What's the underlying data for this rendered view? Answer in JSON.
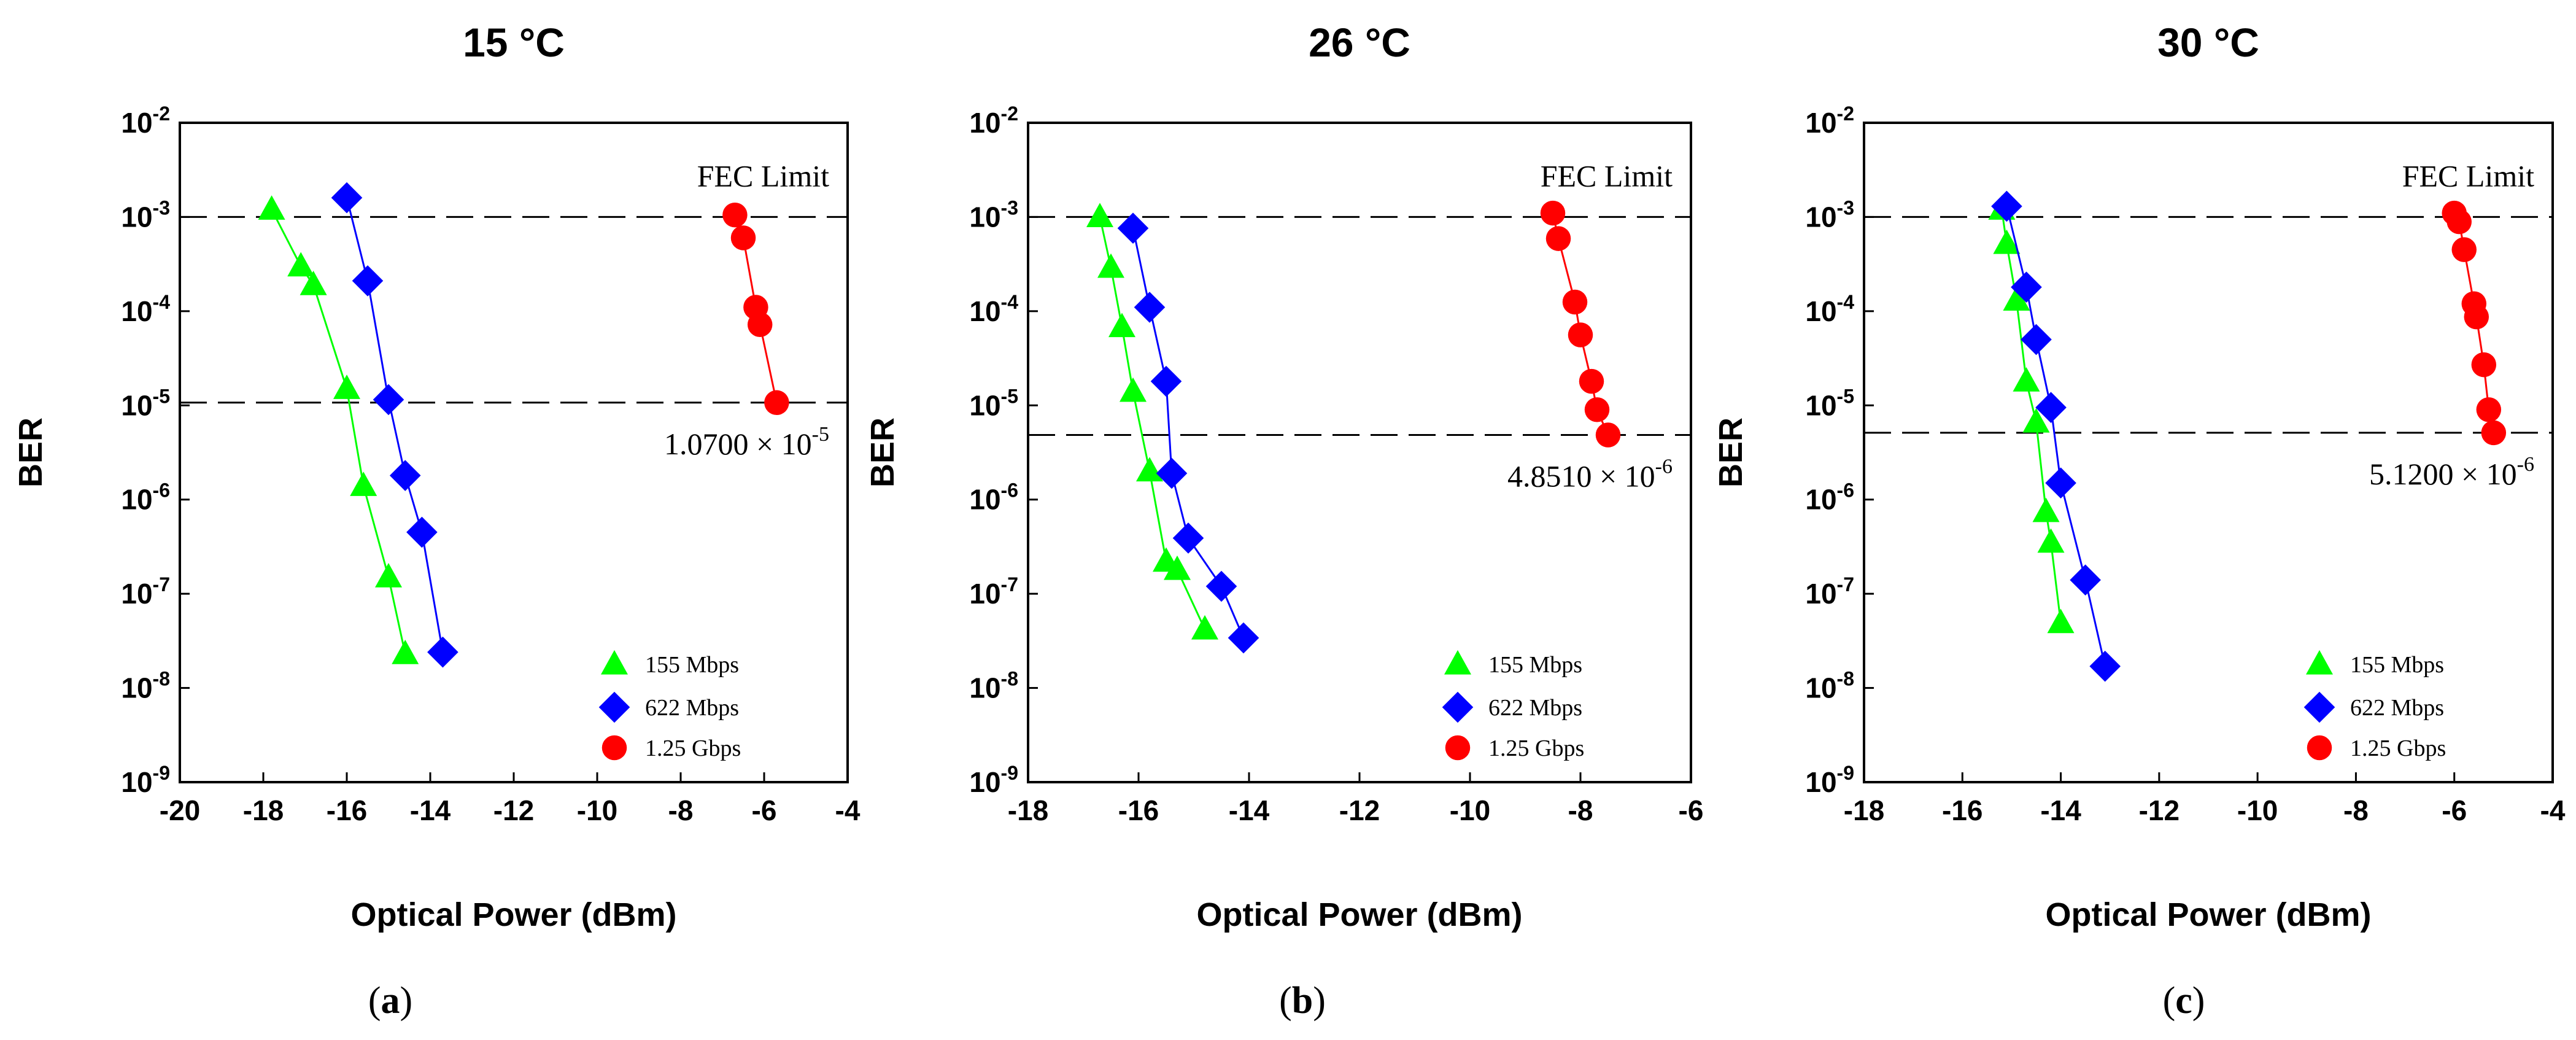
{
  "figure": {
    "captions": [
      "a",
      "b",
      "c"
    ]
  },
  "chart_data": [
    {
      "type": "line",
      "title": "15 °C",
      "xlabel": "Optical Power (dBm)",
      "ylabel": "BER",
      "xlim": [
        -20,
        -4
      ],
      "xticks": [
        -20,
        -18,
        -16,
        -14,
        -12,
        -10,
        -8,
        -6,
        -4
      ],
      "yscale": "log",
      "ylim_exp": [
        -9,
        -2
      ],
      "yticks_exp": [
        -9,
        -8,
        -7,
        -6,
        -5,
        -4,
        -3,
        -2
      ],
      "ytick_base": "10",
      "fec_label": "FEC Limit",
      "fec_value": 0.001,
      "threshold_value": 1.07e-05,
      "threshold_mantissa": "1.0700 × 10",
      "threshold_exp": "-5",
      "series": [
        {
          "name": "155 Mbps",
          "marker": "triangle",
          "color": "#00ff00",
          "x": [
            -17.8,
            -17.1,
            -16.8,
            -16.0,
            -15.6,
            -15.0,
            -14.6
          ],
          "y": [
            0.0012,
            0.0003,
            0.00019,
            1.5e-05,
            1.4e-06,
            1.5e-07,
            2.3e-08
          ]
        },
        {
          "name": "622 Mbps",
          "marker": "diamond",
          "color": "#0000ff",
          "x": [
            -16.0,
            -15.5,
            -15.0,
            -14.6,
            -14.2,
            -13.7
          ],
          "y": [
            0.0016,
            0.00021,
            1.15e-05,
            1.8e-06,
            4.5e-07,
            2.4e-08
          ]
        },
        {
          "name": "1.25 Gbps",
          "marker": "circle",
          "color": "#ff0000",
          "x": [
            -6.7,
            -6.5,
            -6.2,
            -6.1,
            -5.7
          ],
          "y": [
            0.00105,
            0.0006,
            0.00011,
            7.2e-05,
            1.07e-05
          ]
        }
      ]
    },
    {
      "type": "line",
      "title": "26 °C",
      "xlabel": "Optical Power (dBm)",
      "ylabel": "BER",
      "xlim": [
        -18,
        -6
      ],
      "xticks": [
        -18,
        -16,
        -14,
        -12,
        -10,
        -8,
        -6
      ],
      "yscale": "log",
      "ylim_exp": [
        -9,
        -2
      ],
      "yticks_exp": [
        -9,
        -8,
        -7,
        -6,
        -5,
        -4,
        -3,
        -2
      ],
      "ytick_base": "10",
      "fec_label": "FEC Limit",
      "fec_value": 0.001,
      "threshold_value": 4.851e-06,
      "threshold_mantissa": "4.8510 × 10",
      "threshold_exp": "-6",
      "series": [
        {
          "name": "155 Mbps",
          "marker": "triangle",
          "color": "#00ff00",
          "x": [
            -16.7,
            -16.5,
            -16.3,
            -16.1,
            -15.8,
            -15.5,
            -15.3,
            -14.8
          ],
          "y": [
            0.001,
            0.00029,
            6.8e-05,
            1.4e-05,
            2e-06,
            2.2e-07,
            1.8e-07,
            4.2e-08
          ]
        },
        {
          "name": "622 Mbps",
          "marker": "diamond",
          "color": "#0000ff",
          "x": [
            -16.1,
            -15.8,
            -15.5,
            -15.4,
            -15.1,
            -14.5,
            -14.1
          ],
          "y": [
            0.00076,
            0.00011,
            1.8e-05,
            1.9e-06,
            3.9e-07,
            1.2e-07,
            3.4e-08
          ]
        },
        {
          "name": "1.25 Gbps",
          "marker": "circle",
          "color": "#ff0000",
          "x": [
            -8.5,
            -8.4,
            -8.1,
            -8.0,
            -7.8,
            -7.7,
            -7.5
          ],
          "y": [
            0.0011,
            0.00059,
            0.000125,
            5.6e-05,
            1.8e-05,
            9e-06,
            4.85e-06
          ]
        }
      ]
    },
    {
      "type": "line",
      "title": "30 °C",
      "xlabel": "Optical Power (dBm)",
      "ylabel": "BER",
      "xlim": [
        -18,
        -4
      ],
      "xticks": [
        -18,
        -16,
        -14,
        -12,
        -10,
        -8,
        -6,
        -4
      ],
      "yscale": "log",
      "ylim_exp": [
        -9,
        -2
      ],
      "yticks_exp": [
        -9,
        -8,
        -7,
        -6,
        -5,
        -4,
        -3,
        -2
      ],
      "ytick_base": "10",
      "fec_label": "FEC Limit",
      "fec_value": 0.001,
      "threshold_value": 5.12e-06,
      "threshold_mantissa": "5.1200 × 10",
      "threshold_exp": "-6",
      "series": [
        {
          "name": "155 Mbps",
          "marker": "triangle",
          "color": "#00ff00",
          "x": [
            -15.2,
            -15.1,
            -14.9,
            -14.7,
            -14.5,
            -14.3,
            -14.2,
            -14.0
          ],
          "y": [
            0.0012,
            0.00052,
            0.00013,
            1.8e-05,
            6.6e-06,
            7.4e-07,
            3.5e-07,
            4.9e-08
          ]
        },
        {
          "name": "622 Mbps",
          "marker": "diamond",
          "color": "#0000ff",
          "x": [
            -15.1,
            -14.7,
            -14.5,
            -14.2,
            -14.0,
            -13.5,
            -13.1
          ],
          "y": [
            0.0013,
            0.00018,
            5e-05,
            9.5e-06,
            1.5e-06,
            1.4e-07,
            1.7e-08
          ]
        },
        {
          "name": "1.25 Gbps",
          "marker": "circle",
          "color": "#ff0000",
          "x": [
            -6.0,
            -5.9,
            -5.8,
            -5.6,
            -5.55,
            -5.4,
            -5.3,
            -5.2
          ],
          "y": [
            0.0011,
            0.00089,
            0.00045,
            0.00012,
            8.7e-05,
            2.7e-05,
            9e-06,
            5.12e-06
          ]
        }
      ]
    }
  ]
}
